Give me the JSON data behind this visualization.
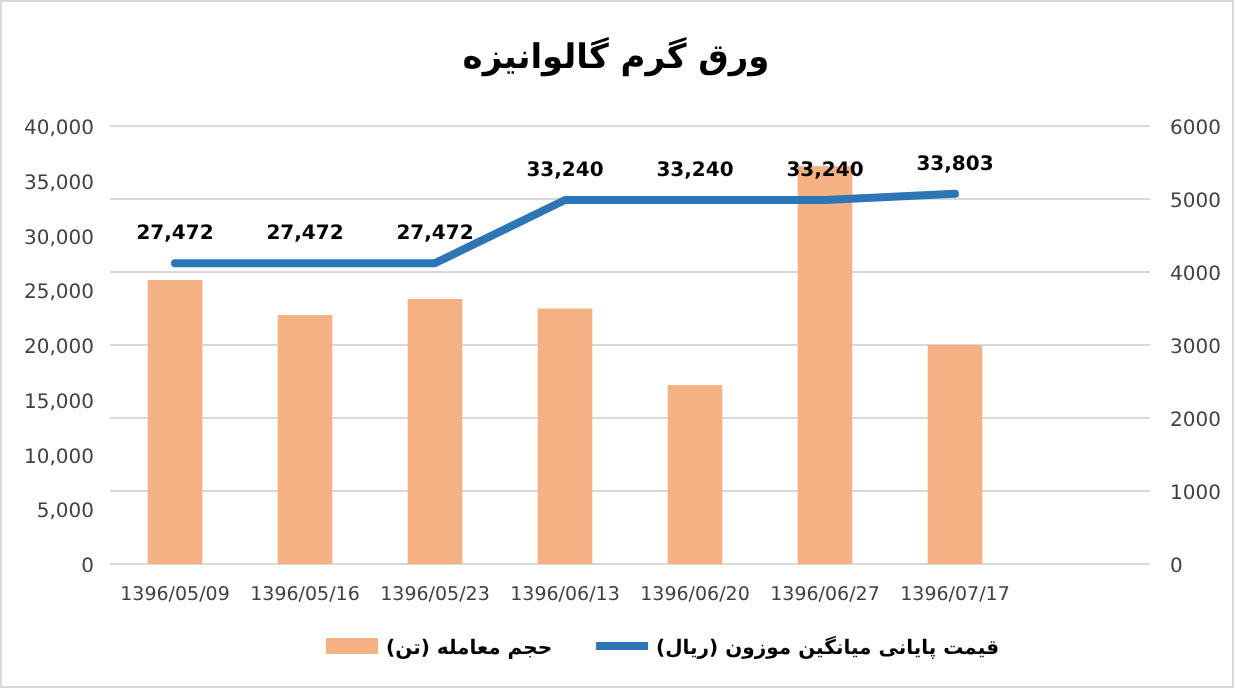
{
  "chart_data": {
    "type": "bar",
    "title": "ورق گرم گالوانیزه",
    "categories": [
      "1396/05/09",
      "1396/05/16",
      "1396/05/23",
      "1396/06/13",
      "1396/06/20",
      "1396/06/27",
      "1396/07/17",
      null
    ],
    "series": [
      {
        "name": "حجم معامله (تن)",
        "axis": "y2",
        "color": "#f4b183",
        "values": [
          3890,
          3410,
          3630,
          3500,
          2450,
          5450,
          3000,
          null
        ]
      },
      {
        "name": "قیمت پایانی میانگین موزون (ریال)",
        "type": "line",
        "color": "#2e75b6",
        "values": [
          27472,
          27472,
          27472,
          33240,
          33240,
          33240,
          33803,
          null
        ],
        "value_labels": [
          "27,472",
          "27,472",
          "27,472",
          "33,240",
          "33,240",
          "33,240",
          "33,803",
          null
        ]
      }
    ],
    "ylim": [
      0,
      40000
    ],
    "yticks": [
      0,
      {
        "value": 5000,
        "label": "5,000"
      },
      {
        "value": 10000,
        "label": "10,000"
      },
      {
        "value": 15000,
        "label": "15,000"
      },
      {
        "value": 20000,
        "label": "20,000"
      },
      {
        "value": 25000,
        "label": "25,000"
      },
      {
        "value": 30000,
        "label": "30,000"
      },
      {
        "value": 35000,
        "label": "35,000"
      },
      {
        "value": 40000,
        "label": "40,000"
      }
    ],
    "y2lim": [
      0,
      6000
    ],
    "y2ticks": [
      0,
      1000,
      2000,
      3000,
      4000,
      5000,
      6000
    ],
    "grid": "y",
    "legend": "bottom",
    "marker": "none",
    "line_style": "solid"
  }
}
